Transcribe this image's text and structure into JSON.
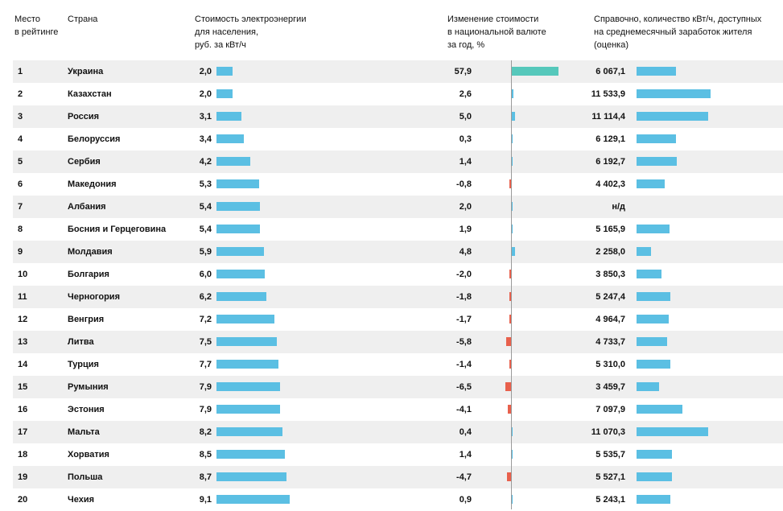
{
  "headers": {
    "rank": [
      "Место",
      "в рейтинге"
    ],
    "country": [
      "Страна"
    ],
    "price": [
      "Стоимость электроэнергии",
      "для населения,",
      "руб. за кВт/ч"
    ],
    "change": [
      "Изменение стоимости",
      "в национальной валюте",
      "за год, %"
    ],
    "ref": [
      "Справочно, количество кВт/ч, доступных",
      "на среднемесячный заработок жителя",
      "(оценка)"
    ]
  },
  "colors": {
    "bar": "#5bbfe3",
    "positive_large": "#56c8bb",
    "negative": "#e8604c",
    "row_shade": "#efefef"
  },
  "chart_data": {
    "type": "table",
    "columns": [
      "Место в рейтинге",
      "Страна",
      "Стоимость электроэнергии для населения, руб. за кВт/ч",
      "Изменение стоимости в национальной валюте за год, %",
      "Справочно, количество кВт/ч, доступных на среднемесячный заработок жителя (оценка)"
    ],
    "rows": [
      {
        "rank": "1",
        "country": "Украина",
        "price": "2,0",
        "price_value": 2.0,
        "change": "57,9",
        "change_value": 57.9,
        "ref": "6 067,1",
        "ref_value": 6067.1
      },
      {
        "rank": "2",
        "country": "Казахстан",
        "price": "2,0",
        "price_value": 2.0,
        "change": "2,6",
        "change_value": 2.6,
        "ref": "11 533,9",
        "ref_value": 11533.9
      },
      {
        "rank": "3",
        "country": "Россия",
        "price": "3,1",
        "price_value": 3.1,
        "change": "5,0",
        "change_value": 5.0,
        "ref": "11 114,4",
        "ref_value": 11114.4
      },
      {
        "rank": "4",
        "country": "Белоруссия",
        "price": "3,4",
        "price_value": 3.4,
        "change": "0,3",
        "change_value": 0.3,
        "ref": "6 129,1",
        "ref_value": 6129.1
      },
      {
        "rank": "5",
        "country": "Сербия",
        "price": "4,2",
        "price_value": 4.2,
        "change": "1,4",
        "change_value": 1.4,
        "ref": "6 192,7",
        "ref_value": 6192.7
      },
      {
        "rank": "6",
        "country": "Македония",
        "price": "5,3",
        "price_value": 5.3,
        "change": "-0,8",
        "change_value": -0.8,
        "ref": "4 402,3",
        "ref_value": 4402.3
      },
      {
        "rank": "7",
        "country": "Албания",
        "price": "5,4",
        "price_value": 5.4,
        "change": "2,0",
        "change_value": 2.0,
        "ref": "н/д",
        "ref_value": null
      },
      {
        "rank": "8",
        "country": "Босния и Герцеговина",
        "price": "5,4",
        "price_value": 5.4,
        "change": "1,9",
        "change_value": 1.9,
        "ref": "5 165,9",
        "ref_value": 5165.9
      },
      {
        "rank": "9",
        "country": "Молдавия",
        "price": "5,9",
        "price_value": 5.9,
        "change": "4,8",
        "change_value": 4.8,
        "ref": "2 258,0",
        "ref_value": 2258.0
      },
      {
        "rank": "10",
        "country": "Болгария",
        "price": "6,0",
        "price_value": 6.0,
        "change": "-2,0",
        "change_value": -2.0,
        "ref": "3 850,3",
        "ref_value": 3850.3
      },
      {
        "rank": "11",
        "country": "Черногория",
        "price": "6,2",
        "price_value": 6.2,
        "change": "-1,8",
        "change_value": -1.8,
        "ref": "5 247,4",
        "ref_value": 5247.4
      },
      {
        "rank": "12",
        "country": "Венгрия",
        "price": "7,2",
        "price_value": 7.2,
        "change": "-1,7",
        "change_value": -1.7,
        "ref": "4 964,7",
        "ref_value": 4964.7
      },
      {
        "rank": "13",
        "country": "Литва",
        "price": "7,5",
        "price_value": 7.5,
        "change": "-5,8",
        "change_value": -5.8,
        "ref": "4 733,7",
        "ref_value": 4733.7
      },
      {
        "rank": "14",
        "country": "Турция",
        "price": "7,7",
        "price_value": 7.7,
        "change": "-1,4",
        "change_value": -1.4,
        "ref": "5 310,0",
        "ref_value": 5310.0
      },
      {
        "rank": "15",
        "country": "Румыния",
        "price": "7,9",
        "price_value": 7.9,
        "change": "-6,5",
        "change_value": -6.5,
        "ref": "3 459,7",
        "ref_value": 3459.7
      },
      {
        "rank": "16",
        "country": "Эстония",
        "price": "7,9",
        "price_value": 7.9,
        "change": "-4,1",
        "change_value": -4.1,
        "ref": "7 097,9",
        "ref_value": 7097.9
      },
      {
        "rank": "17",
        "country": "Мальта",
        "price": "8,2",
        "price_value": 8.2,
        "change": "0,4",
        "change_value": 0.4,
        "ref": "11 070,3",
        "ref_value": 11070.3
      },
      {
        "rank": "18",
        "country": "Хорватия",
        "price": "8,5",
        "price_value": 8.5,
        "change": "1,4",
        "change_value": 1.4,
        "ref": "5 535,7",
        "ref_value": 5535.7
      },
      {
        "rank": "19",
        "country": "Польша",
        "price": "8,7",
        "price_value": 8.7,
        "change": "-4,7",
        "change_value": -4.7,
        "ref": "5 527,1",
        "ref_value": 5527.1
      },
      {
        "rank": "20",
        "country": "Чехия",
        "price": "9,1",
        "price_value": 9.1,
        "change": "0,9",
        "change_value": 0.9,
        "ref": "5 243,1",
        "ref_value": 5243.1
      }
    ]
  }
}
